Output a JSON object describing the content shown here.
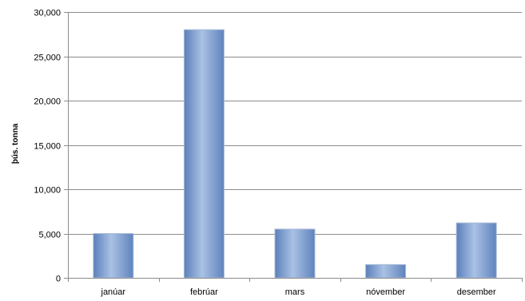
{
  "chart_data": {
    "type": "bar",
    "categories": [
      "janúar",
      "febrúar",
      "mars",
      "nóvember",
      "desember"
    ],
    "values": [
      5000,
      28000,
      5500,
      1500,
      6200
    ],
    "ylabel": "þús. tonna",
    "ylim": [
      0,
      30000
    ],
    "yticks": [
      0,
      5000,
      10000,
      15000,
      20000,
      25000,
      30000
    ],
    "ytick_labels": [
      "0",
      "5,000",
      "10,000",
      "15,000",
      "20,000",
      "25,000",
      "30,000"
    ],
    "grid": true,
    "legend": "none",
    "bar_color": "#6f93c8"
  }
}
